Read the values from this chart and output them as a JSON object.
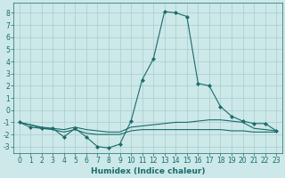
{
  "title": "",
  "xlabel": "Humidex (Indice chaleur)",
  "ylabel": "",
  "background_color": "#cce8e8",
  "grid_color": "#aacccc",
  "line_color": "#1a6b6b",
  "xlim": [
    -0.5,
    23.5
  ],
  "ylim": [
    -3.5,
    8.8
  ],
  "yticks": [
    -3,
    -2,
    -1,
    0,
    1,
    2,
    3,
    4,
    5,
    6,
    7,
    8
  ],
  "xticks": [
    0,
    1,
    2,
    3,
    4,
    5,
    6,
    7,
    8,
    9,
    10,
    11,
    12,
    13,
    14,
    15,
    16,
    17,
    18,
    19,
    20,
    21,
    22,
    23
  ],
  "series": [
    {
      "x": [
        0,
        1,
        2,
        3,
        4,
        5,
        6,
        7,
        8,
        9,
        10,
        11,
        12,
        13,
        14,
        15,
        16,
        17,
        18,
        19,
        20,
        21,
        22,
        23
      ],
      "y": [
        -1.0,
        -1.4,
        -1.5,
        -1.5,
        -2.2,
        -1.5,
        -2.2,
        -3.0,
        -3.1,
        -2.8,
        -0.9,
        2.5,
        4.2,
        8.1,
        8.0,
        7.7,
        2.2,
        2.0,
        0.3,
        -0.5,
        -0.9,
        -1.1,
        -1.1,
        -1.7
      ],
      "marker": "D",
      "markersize": 2.0,
      "linewidth": 0.8
    },
    {
      "x": [
        0,
        1,
        2,
        3,
        4,
        5,
        6,
        7,
        8,
        9,
        10,
        11,
        12,
        13,
        14,
        15,
        16,
        17,
        18,
        19,
        20,
        21,
        22,
        23
      ],
      "y": [
        -1.0,
        -1.2,
        -1.4,
        -1.5,
        -1.6,
        -1.4,
        -1.6,
        -1.7,
        -1.8,
        -1.8,
        -1.4,
        -1.3,
        -1.2,
        -1.1,
        -1.0,
        -1.0,
        -0.9,
        -0.8,
        -0.8,
        -0.9,
        -1.0,
        -1.5,
        -1.6,
        -1.7
      ],
      "marker": null,
      "markersize": 0,
      "linewidth": 0.8
    },
    {
      "x": [
        0,
        1,
        2,
        3,
        4,
        5,
        6,
        7,
        8,
        9,
        10,
        11,
        12,
        13,
        14,
        15,
        16,
        17,
        18,
        19,
        20,
        21,
        22,
        23
      ],
      "y": [
        -1.0,
        -1.2,
        -1.5,
        -1.6,
        -1.8,
        -1.6,
        -1.9,
        -2.0,
        -2.0,
        -2.0,
        -1.7,
        -1.6,
        -1.6,
        -1.6,
        -1.6,
        -1.6,
        -1.6,
        -1.6,
        -1.6,
        -1.7,
        -1.7,
        -1.8,
        -1.8,
        -1.8
      ],
      "marker": null,
      "markersize": 0,
      "linewidth": 0.8
    }
  ],
  "font_color": "#1a6b6b",
  "tick_fontsize": 5.5,
  "label_fontsize": 6.5
}
